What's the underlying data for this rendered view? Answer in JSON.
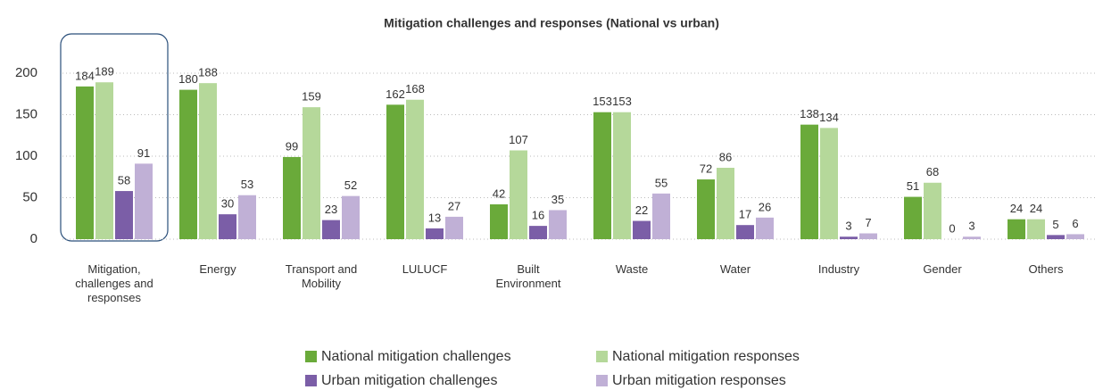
{
  "chart_data": {
    "type": "bar",
    "title": "Mitigation challenges and responses (National vs urban)",
    "categories": [
      "Mitigation, challenges and responses",
      "Energy",
      "Transport and Mobility",
      "LULUCF",
      "Built Environment",
      "Waste",
      "Water",
      "Industry",
      "Gender",
      "Others"
    ],
    "series": [
      {
        "name": "National mitigation challenges",
        "color": "#6aaa3a",
        "values": [
          184,
          180,
          99,
          162,
          42,
          153,
          72,
          138,
          51,
          24
        ]
      },
      {
        "name": "National mitigation responses",
        "color": "#b5d89a",
        "values": [
          189,
          188,
          159,
          168,
          107,
          153,
          86,
          134,
          68,
          24
        ]
      },
      {
        "name": "Urban mitigation challenges",
        "color": "#7b5ea7",
        "values": [
          58,
          30,
          23,
          13,
          16,
          22,
          17,
          3,
          0,
          5
        ]
      },
      {
        "name": "Urban mitigation responses",
        "color": "#c0b0d6",
        "values": [
          91,
          53,
          52,
          27,
          35,
          55,
          26,
          7,
          3,
          6
        ]
      }
    ],
    "ylim": [
      0,
      200
    ],
    "yticks": [
      0,
      50,
      100,
      150,
      200
    ],
    "grid": true
  }
}
